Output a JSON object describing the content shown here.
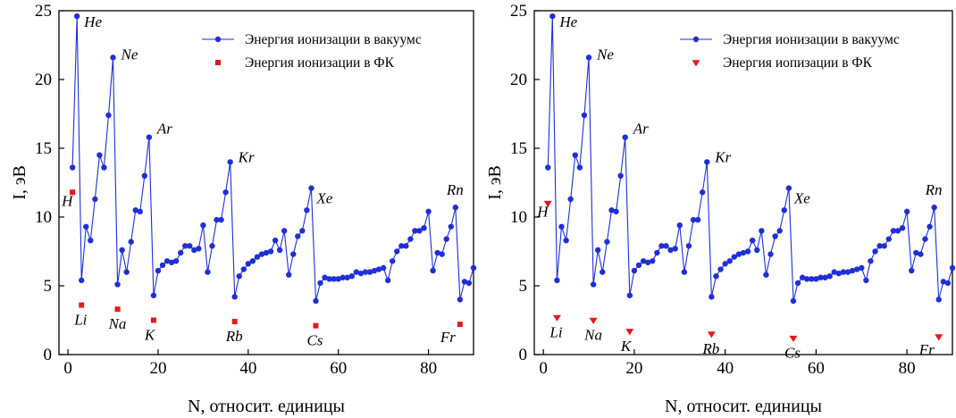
{
  "chart_data": [
    {
      "type": "line",
      "panel": "left",
      "xlabel": "N, относит. единицы",
      "ylabel": "I, эВ",
      "xlim": [
        -2,
        90
      ],
      "ylim": [
        0,
        25
      ],
      "x_ticks": [
        0,
        20,
        40,
        60,
        80
      ],
      "y_ticks": [
        0,
        5,
        10,
        15,
        20,
        25
      ],
      "grid": false,
      "legend_position": "top-right",
      "series": [
        {
          "name": "Энергия ионизации в вакуумс",
          "color": "#1f2fd6",
          "marker": "circle",
          "x": [
            1,
            2,
            3,
            4,
            5,
            6,
            7,
            8,
            9,
            10,
            11,
            12,
            13,
            14,
            15,
            16,
            17,
            18,
            19,
            20,
            21,
            22,
            23,
            24,
            25,
            26,
            27,
            28,
            29,
            30,
            31,
            32,
            33,
            34,
            35,
            36,
            37,
            38,
            39,
            40,
            41,
            42,
            43,
            44,
            45,
            46,
            47,
            48,
            49,
            50,
            51,
            52,
            53,
            54,
            55,
            56,
            57,
            58,
            59,
            60,
            61,
            62,
            63,
            64,
            65,
            66,
            67,
            68,
            69,
            70,
            71,
            72,
            73,
            74,
            75,
            76,
            77,
            78,
            79,
            80,
            81,
            82,
            83,
            84,
            85,
            86,
            87,
            88,
            89,
            90
          ],
          "y": [
            13.6,
            24.6,
            5.4,
            9.3,
            8.3,
            11.3,
            14.5,
            13.6,
            17.4,
            21.6,
            5.1,
            7.6,
            6.0,
            8.2,
            10.5,
            10.4,
            13.0,
            15.8,
            4.3,
            6.1,
            6.5,
            6.8,
            6.7,
            6.8,
            7.4,
            7.9,
            7.9,
            7.6,
            7.7,
            9.4,
            6.0,
            7.9,
            9.8,
            9.8,
            11.8,
            14.0,
            4.2,
            5.7,
            6.2,
            6.6,
            6.8,
            7.1,
            7.3,
            7.4,
            7.5,
            8.3,
            7.6,
            9.0,
            5.8,
            7.3,
            8.6,
            9.0,
            10.5,
            12.1,
            3.9,
            5.2,
            5.6,
            5.5,
            5.5,
            5.5,
            5.6,
            5.6,
            5.7,
            6.0,
            5.9,
            6.0,
            6.0,
            6.1,
            6.2,
            6.3,
            5.4,
            6.8,
            7.5,
            7.9,
            7.9,
            8.4,
            9.0,
            9.0,
            9.2,
            10.4,
            6.1,
            7.4,
            7.3,
            8.4,
            9.3,
            10.7,
            4.0,
            5.3,
            5.2,
            6.3
          ]
        },
        {
          "name": "Энергия ионизации в ФК",
          "color": "#e31a1c",
          "marker": "square",
          "x": [
            1,
            3,
            11,
            19,
            37,
            55,
            87
          ],
          "y": [
            11.8,
            3.6,
            3.3,
            2.5,
            2.4,
            2.1,
            2.2
          ]
        }
      ],
      "annotations": [
        {
          "text": "He",
          "x": 2,
          "y": 24.6
        },
        {
          "text": "Ne",
          "x": 10,
          "y": 21.6
        },
        {
          "text": "Ar",
          "x": 18,
          "y": 15.8
        },
        {
          "text": "Kr",
          "x": 36,
          "y": 14.0
        },
        {
          "text": "Xe",
          "x": 54,
          "y": 12.1
        },
        {
          "text": "Rn",
          "x": 86,
          "y": 10.7
        },
        {
          "text": "H",
          "x": 1,
          "y": 11.8
        },
        {
          "text": "Li",
          "x": 3,
          "y": 3.6
        },
        {
          "text": "Na",
          "x": 11,
          "y": 3.3
        },
        {
          "text": "K",
          "x": 19,
          "y": 2.5
        },
        {
          "text": "Rb",
          "x": 37,
          "y": 2.4
        },
        {
          "text": "Cs",
          "x": 55,
          "y": 2.1
        },
        {
          "text": "Fr",
          "x": 87,
          "y": 2.2
        }
      ]
    },
    {
      "type": "line",
      "panel": "right",
      "xlabel": "N, относит. единицы",
      "ylabel": "I, эВ",
      "xlim": [
        -2,
        90
      ],
      "ylim": [
        0,
        25
      ],
      "x_ticks": [
        0,
        20,
        40,
        60,
        80
      ],
      "y_ticks": [
        0,
        5,
        10,
        15,
        20,
        25
      ],
      "grid": false,
      "legend_position": "top-right",
      "series": [
        {
          "name": "Энергия ионизации в вакуумс",
          "color": "#1f2fd6",
          "marker": "circle",
          "x": [
            1,
            2,
            3,
            4,
            5,
            6,
            7,
            8,
            9,
            10,
            11,
            12,
            13,
            14,
            15,
            16,
            17,
            18,
            19,
            20,
            21,
            22,
            23,
            24,
            25,
            26,
            27,
            28,
            29,
            30,
            31,
            32,
            33,
            34,
            35,
            36,
            37,
            38,
            39,
            40,
            41,
            42,
            43,
            44,
            45,
            46,
            47,
            48,
            49,
            50,
            51,
            52,
            53,
            54,
            55,
            56,
            57,
            58,
            59,
            60,
            61,
            62,
            63,
            64,
            65,
            66,
            67,
            68,
            69,
            70,
            71,
            72,
            73,
            74,
            75,
            76,
            77,
            78,
            79,
            80,
            81,
            82,
            83,
            84,
            85,
            86,
            87,
            88,
            89,
            90
          ],
          "y": [
            13.6,
            24.6,
            5.4,
            9.3,
            8.3,
            11.3,
            14.5,
            13.6,
            17.4,
            21.6,
            5.1,
            7.6,
            6.0,
            8.2,
            10.5,
            10.4,
            13.0,
            15.8,
            4.3,
            6.1,
            6.5,
            6.8,
            6.7,
            6.8,
            7.4,
            7.9,
            7.9,
            7.6,
            7.7,
            9.4,
            6.0,
            7.9,
            9.8,
            9.8,
            11.8,
            14.0,
            4.2,
            5.7,
            6.2,
            6.6,
            6.8,
            7.1,
            7.3,
            7.4,
            7.5,
            8.3,
            7.6,
            9.0,
            5.8,
            7.3,
            8.6,
            9.0,
            10.5,
            12.1,
            3.9,
            5.2,
            5.6,
            5.5,
            5.5,
            5.5,
            5.6,
            5.6,
            5.7,
            6.0,
            5.9,
            6.0,
            6.0,
            6.1,
            6.2,
            6.3,
            5.4,
            6.8,
            7.5,
            7.9,
            7.9,
            8.4,
            9.0,
            9.0,
            9.2,
            10.4,
            6.1,
            7.4,
            7.3,
            8.4,
            9.3,
            10.7,
            4.0,
            5.3,
            5.2,
            6.3
          ]
        },
        {
          "name": "Энергия иопизации в ФК",
          "color": "#e31a1c",
          "marker": "triangle-down",
          "x": [
            1,
            3,
            11,
            19,
            37,
            55,
            87
          ],
          "y": [
            11.0,
            2.7,
            2.5,
            1.7,
            1.5,
            1.2,
            1.3
          ]
        }
      ],
      "annotations": [
        {
          "text": "He",
          "x": 2,
          "y": 24.6
        },
        {
          "text": "Ne",
          "x": 10,
          "y": 21.6
        },
        {
          "text": "Ar",
          "x": 18,
          "y": 15.8
        },
        {
          "text": "Kr",
          "x": 36,
          "y": 14.0
        },
        {
          "text": "Xe",
          "x": 54,
          "y": 12.1
        },
        {
          "text": "Rn",
          "x": 86,
          "y": 10.7
        },
        {
          "text": "H",
          "x": 1,
          "y": 11.0
        },
        {
          "text": "Li",
          "x": 3,
          "y": 2.7
        },
        {
          "text": "Na",
          "x": 11,
          "y": 2.5
        },
        {
          "text": "K",
          "x": 19,
          "y": 1.7
        },
        {
          "text": "Rb",
          "x": 37,
          "y": 1.5
        },
        {
          "text": "Cs",
          "x": 55,
          "y": 1.2
        },
        {
          "text": "Fr",
          "x": 87,
          "y": 1.3
        }
      ]
    }
  ]
}
